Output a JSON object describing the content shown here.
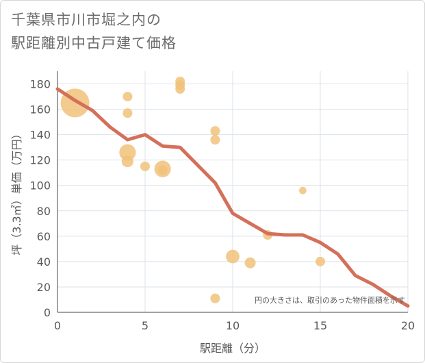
{
  "title": {
    "line1": "千葉県市川市堀之内の",
    "line2": "駅距離別中古戸建て価格"
  },
  "chart_data": {
    "type": "scatter",
    "title": "千葉県市川市堀之内の駅距離別中古戸建て価格",
    "xlabel": "駅距離（分）",
    "ylabel": "坪（3.3㎡）単価（万円）",
    "xlim": [
      0,
      20
    ],
    "ylim": [
      0,
      190
    ],
    "xticks": [
      "0",
      "5",
      "10",
      "15",
      "20"
    ],
    "yticks": [
      "0",
      "20",
      "40",
      "60",
      "80",
      "100",
      "120",
      "140",
      "160",
      "180"
    ],
    "grid": true,
    "note": "円の大きさは、取引のあった物件面積を示す",
    "colors": {
      "bubble": "#f1c27a",
      "line": "#d4705a",
      "grid": "#dbe2ea"
    },
    "bubbles": [
      {
        "x": 1,
        "y": 165,
        "size": 9
      },
      {
        "x": 4,
        "y": 170,
        "size": 1
      },
      {
        "x": 4,
        "y": 157,
        "size": 1
      },
      {
        "x": 4,
        "y": 126,
        "size": 3
      },
      {
        "x": 4,
        "y": 119,
        "size": 1.5
      },
      {
        "x": 5,
        "y": 115,
        "size": 1
      },
      {
        "x": 6,
        "y": 113,
        "size": 3
      },
      {
        "x": 6,
        "y": 112,
        "size": 1
      },
      {
        "x": 7,
        "y": 182,
        "size": 1
      },
      {
        "x": 7,
        "y": 179,
        "size": 1
      },
      {
        "x": 7,
        "y": 176,
        "size": 1
      },
      {
        "x": 9,
        "y": 143,
        "size": 1
      },
      {
        "x": 9,
        "y": 136,
        "size": 1
      },
      {
        "x": 9,
        "y": 11,
        "size": 1
      },
      {
        "x": 10,
        "y": 44,
        "size": 2
      },
      {
        "x": 11,
        "y": 39,
        "size": 1.3
      },
      {
        "x": 12,
        "y": 61,
        "size": 1
      },
      {
        "x": 14,
        "y": 96,
        "size": 0.6
      },
      {
        "x": 15,
        "y": 40,
        "size": 1
      }
    ],
    "trend": {
      "x": [
        0,
        1,
        2,
        3,
        4,
        5,
        6,
        7,
        8,
        9,
        10,
        11,
        12,
        13,
        14,
        15,
        16,
        17,
        18,
        19,
        20
      ],
      "y": [
        176,
        167,
        159,
        146,
        136,
        140,
        131,
        130,
        116,
        102,
        78,
        70,
        62,
        61,
        61,
        55,
        46,
        29,
        22,
        13,
        5
      ]
    }
  }
}
